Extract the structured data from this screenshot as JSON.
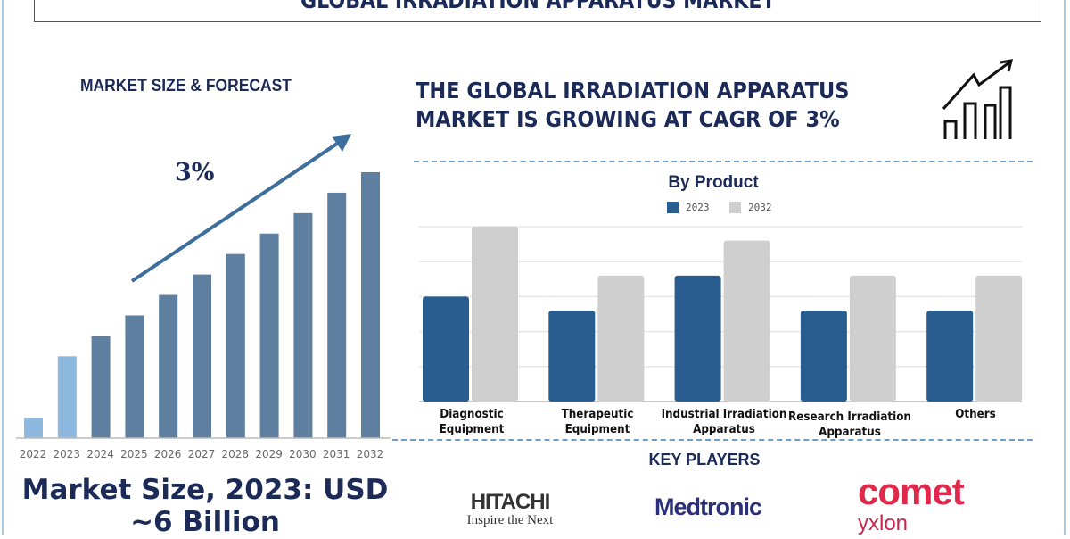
{
  "header": {
    "title": "GLOBAL IRRADIATION APPARATUS MARKET"
  },
  "left": {
    "section_title": "MARKET SIZE & FORECAST",
    "cagr_label": "3%",
    "market_size_line1": "Market Size, 2023: USD",
    "market_size_line2": "~6 Billion"
  },
  "right": {
    "headline_line1": "THE GLOBAL IRRADIATION APPARATUS",
    "headline_line2": "MARKET IS GROWING AT CAGR OF 3%",
    "icon": "growth-chart-icon",
    "key_players_title": "KEY PLAYERS",
    "key_players": [
      {
        "name": "HITACHI",
        "tagline": "Inspire the Next"
      },
      {
        "name": "Medtronic"
      },
      {
        "name": "comet",
        "sub": "yxlon"
      }
    ]
  },
  "chart_data": [
    {
      "type": "bar",
      "title": "",
      "categories": [
        "2022",
        "2023",
        "2024",
        "2025",
        "2026",
        "2027",
        "2028",
        "2029",
        "2030",
        "2031",
        "2032"
      ],
      "values": [
        1,
        4,
        5,
        6,
        7,
        8,
        9,
        10,
        11,
        12,
        13
      ],
      "colors": {
        "historical": "#8db8e0",
        "forecast": "#5f7fa0"
      },
      "historical_years": [
        "2022",
        "2023"
      ],
      "annotation": "3%",
      "grid": false
    },
    {
      "type": "bar",
      "title": "By Product",
      "categories": [
        [
          "Diagnostic",
          "Equipment"
        ],
        [
          "Therapeutic",
          "Equipment"
        ],
        [
          "Industrial Irradiation",
          "Apparatus"
        ],
        [
          "Research Irradiation",
          "Apparatus"
        ],
        [
          "Others"
        ]
      ],
      "series": [
        {
          "name": "2023",
          "values": [
            3,
            2.6,
            3.6,
            2.6,
            2.6
          ],
          "color": "#2a5d8f"
        },
        {
          "name": "2032",
          "values": [
            5,
            3.6,
            4.6,
            3.6,
            3.6
          ],
          "color": "#cfcfcf"
        }
      ],
      "ylim": [
        0,
        5
      ],
      "grid": true,
      "legend": "top"
    }
  ]
}
